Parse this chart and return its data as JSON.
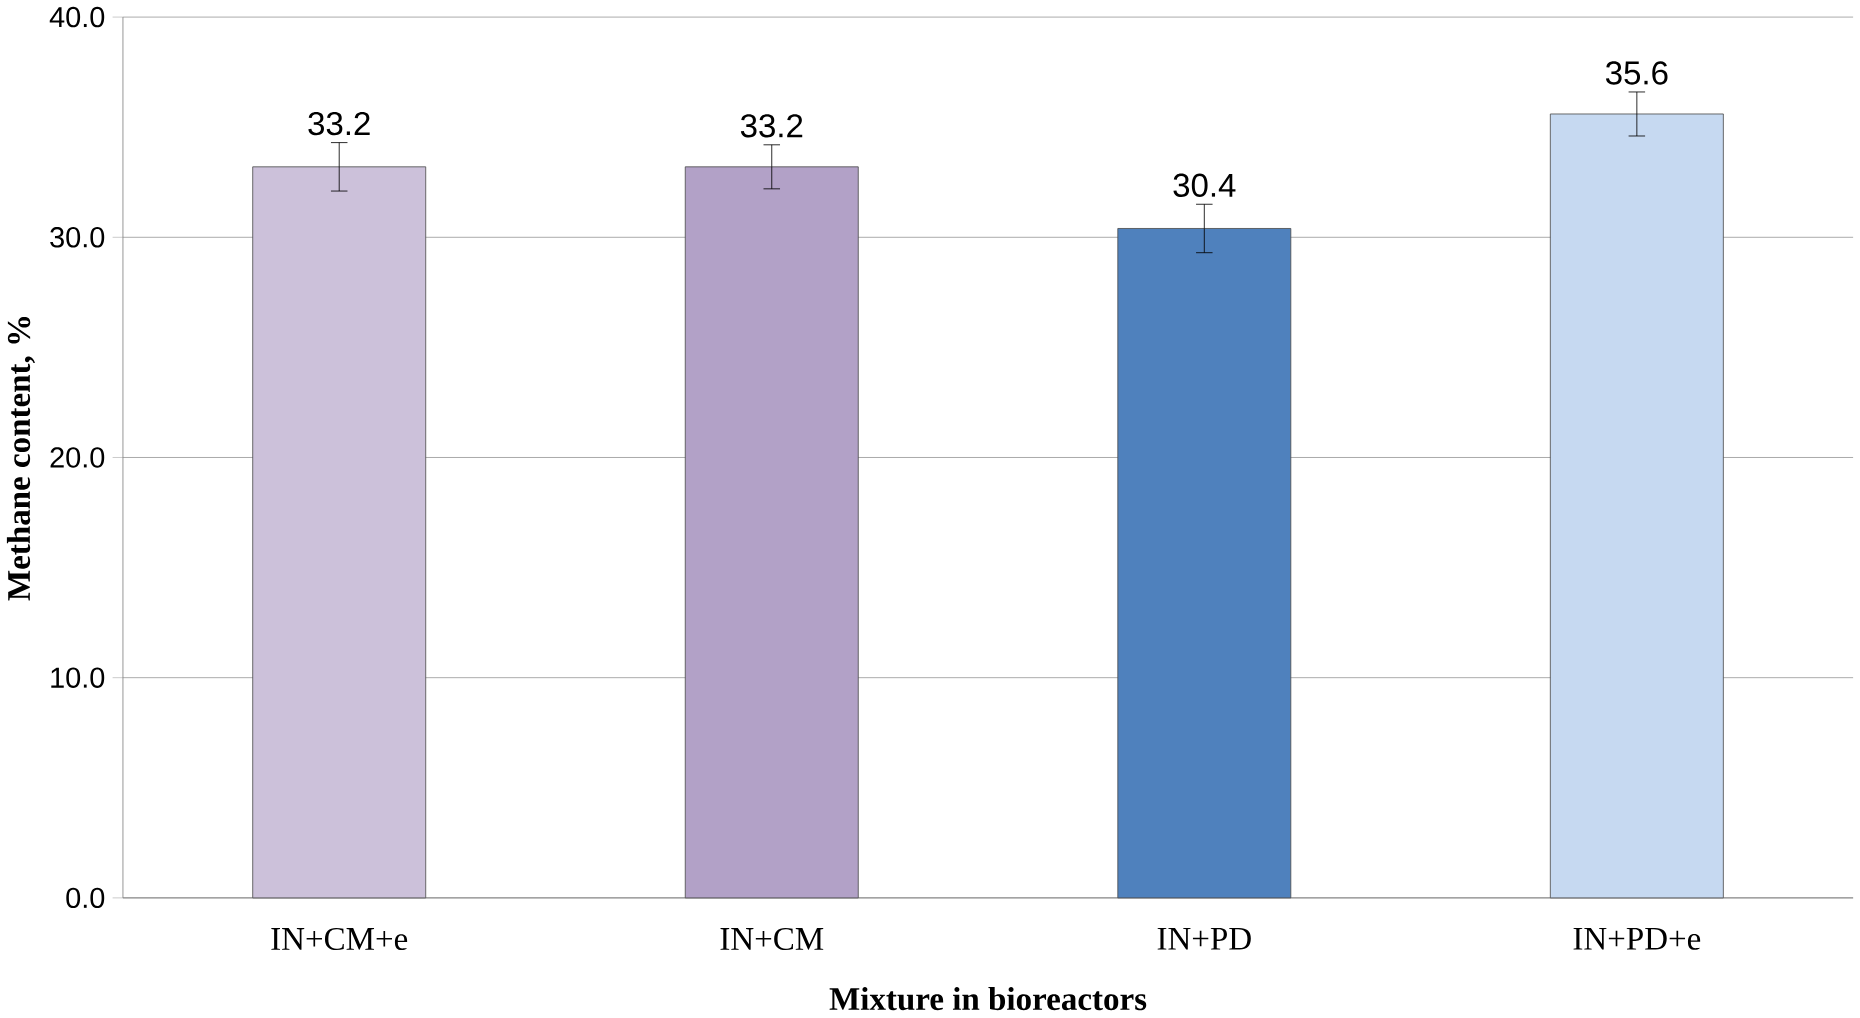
{
  "chart_data": {
    "type": "bar",
    "xlabel": "Mixture  in bioreactors",
    "ylabel": "Methane content, %",
    "categories": [
      "IN+CM+e",
      "IN+CM",
      "IN+PD",
      "IN+PD+e"
    ],
    "values": [
      33.2,
      33.2,
      30.4,
      35.6
    ],
    "errors": [
      1.1,
      1.0,
      1.1,
      1.0
    ],
    "colors": [
      "#ccc1da",
      "#b2a1c7",
      "#4f81bd",
      "#c6d9f1"
    ],
    "ylim": [
      0,
      40
    ],
    "yticks": [
      {
        "value": 0,
        "label": "0.0"
      },
      {
        "value": 10,
        "label": "10.0"
      },
      {
        "value": 20,
        "label": "20.0"
      },
      {
        "value": 30,
        "label": "30.0"
      },
      {
        "value": 40,
        "label": "40.0"
      }
    ],
    "grid": "y",
    "data_labels": true
  }
}
